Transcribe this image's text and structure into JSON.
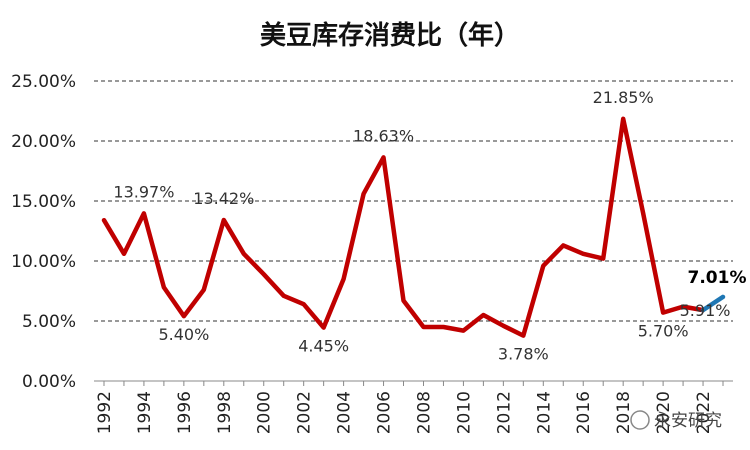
{
  "chart_data": {
    "type": "line",
    "title": "美豆库存消费比（年）",
    "xlabel": "",
    "ylabel": "",
    "ylim": [
      0,
      25
    ],
    "yticks": [
      "0.00%",
      "5.00%",
      "10.00%",
      "15.00%",
      "20.00%",
      "25.00%"
    ],
    "xticks": [
      "1992",
      "1994",
      "1996",
      "1998",
      "2000",
      "2002",
      "2004",
      "2006",
      "2008",
      "2010",
      "2012",
      "2014",
      "2016",
      "2018",
      "2020",
      "2022"
    ],
    "grid": true,
    "series": [
      {
        "color": "#C00000",
        "x": [
          1992,
          1993,
          1994,
          1995,
          1996,
          1997,
          1998,
          1999,
          2000,
          2001,
          2002,
          2003,
          2004,
          2005,
          2006,
          2007,
          2008,
          2009,
          2010,
          2011,
          2012,
          2013,
          2014,
          2015,
          2016,
          2017,
          2018,
          2019,
          2020,
          2021,
          2022
        ],
        "values": [
          13.4,
          10.6,
          13.97,
          7.8,
          5.4,
          7.6,
          13.42,
          10.6,
          8.9,
          7.1,
          6.4,
          4.45,
          8.5,
          15.6,
          18.63,
          6.7,
          4.5,
          4.5,
          4.2,
          5.5,
          4.6,
          3.78,
          9.6,
          11.3,
          10.6,
          10.2,
          21.85,
          14.0,
          5.7,
          6.2,
          5.91
        ]
      },
      {
        "color": "#1F77B4",
        "x": [
          2022,
          2023
        ],
        "values": [
          5.91,
          7.01
        ]
      }
    ],
    "data_labels": [
      {
        "x": 1994,
        "y": 13.97,
        "text": "13.97%",
        "pos": "above"
      },
      {
        "x": 1996,
        "y": 5.4,
        "text": "5.40%",
        "pos": "below"
      },
      {
        "x": 1998,
        "y": 13.42,
        "text": "13.42%",
        "pos": "above"
      },
      {
        "x": 2003,
        "y": 4.45,
        "text": "4.45%",
        "pos": "below"
      },
      {
        "x": 2006,
        "y": 18.63,
        "text": "18.63%",
        "pos": "above"
      },
      {
        "x": 2013,
        "y": 3.78,
        "text": "3.78%",
        "pos": "below"
      },
      {
        "x": 2018,
        "y": 21.85,
        "text": "21.85%",
        "pos": "above"
      },
      {
        "x": 2020,
        "y": 5.7,
        "text": "5.70%",
        "pos": "below"
      },
      {
        "x": 2022,
        "y": 5.91,
        "text": "5.91%",
        "pos": "center"
      },
      {
        "x": 2023,
        "y": 7.01,
        "text": "7.01%",
        "pos": "above-bold"
      }
    ]
  },
  "watermark": "永安研究"
}
